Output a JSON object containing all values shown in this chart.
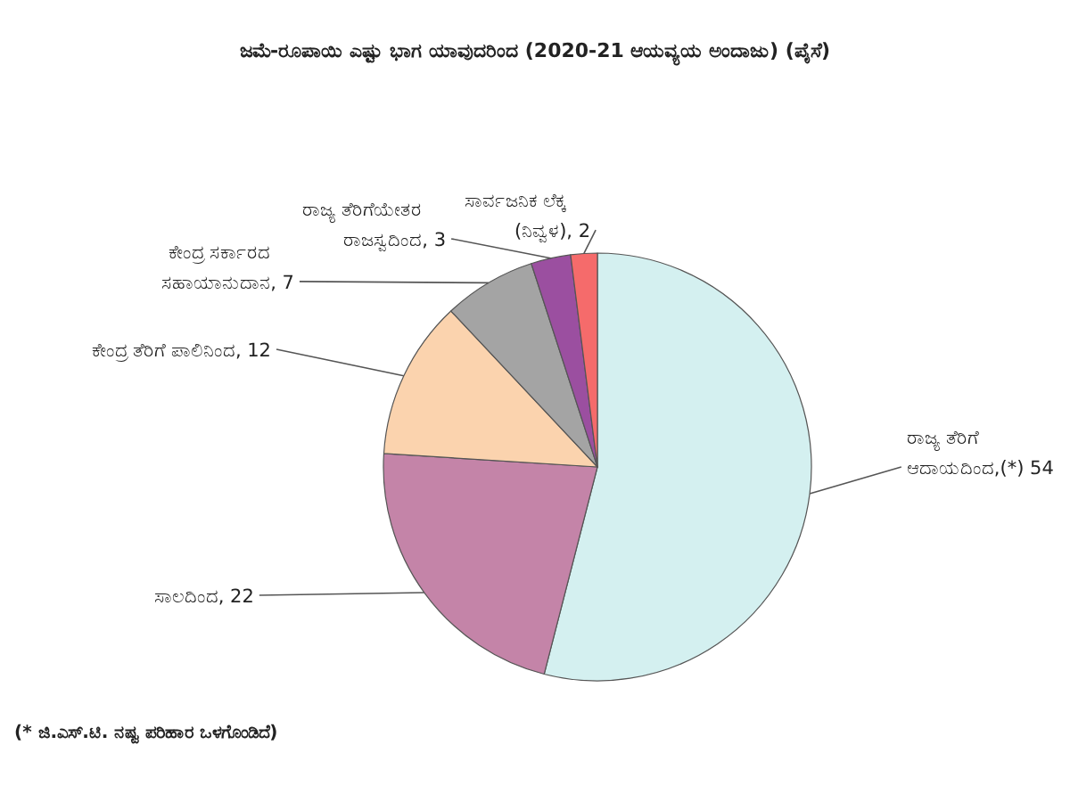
{
  "chart_data": {
    "type": "pie",
    "title": "ಜಮೆ-ರೂಪಾಯಿ ಎಷ್ಟು ಭಾಗ ಯಾವುದರಿಂದ (2020-21 ಆಯವ್ಯಯ ಅಂದಾಜು) (ಪೈಸೆ)",
    "categories": [
      "ರಾಜ್ಯ ತೆರಿಗೆ ಆದಾಯದಿಂದ,(*)",
      "ಸಾಲದಿಂದ",
      "ಕೇಂದ್ರ ತೆರಿಗೆ ಪಾಲಿನಿಂದ",
      "ಕೇಂದ್ರ ಸರ್ಕಾರದ ಸಹಾಯಾನುದಾನ",
      "ರಾಜ್ಯ ತೆರಿಗೆಯೇತರ ರಾಜಸ್ವದಿಂದ",
      "ಸಾರ್ವಜನಿಕ ಲೆಕ್ಕ (ನಿವ್ವಳ)"
    ],
    "values": [
      54,
      22,
      12,
      7,
      3,
      2
    ],
    "value_labels": [
      "54",
      ", 22",
      ", 12",
      ", 7",
      ", 3",
      ", 2"
    ],
    "colors": [
      "#d4f0f0",
      "#c484a8",
      "#fbd3ae",
      "#a4a4a4",
      "#9b4fa0",
      "#f56b6b"
    ],
    "annotations": [
      "(* ಜಿ.ಎಸ್.ಟಿ. ನಷ್ಟ ಪರಿಹಾರ ಒಳಗೊಂಡಿದೆ)"
    ]
  }
}
